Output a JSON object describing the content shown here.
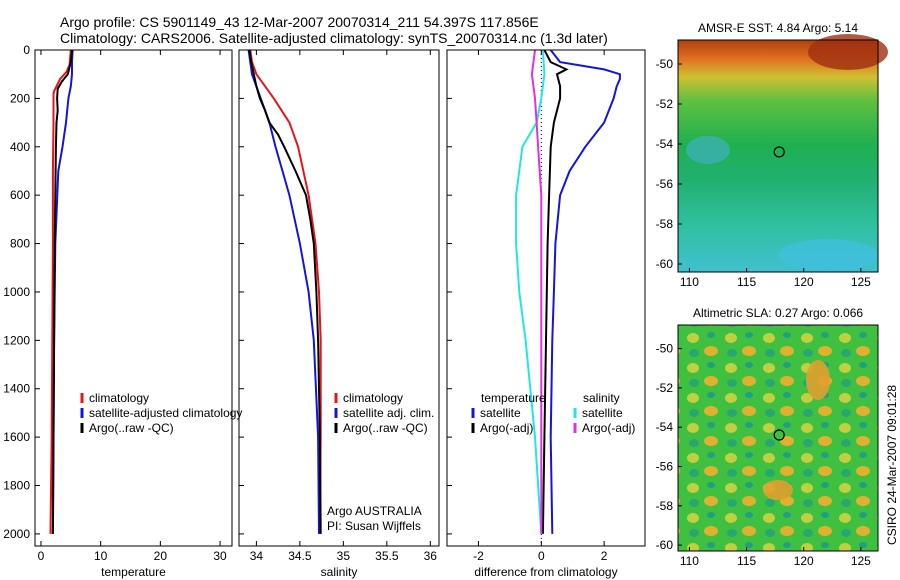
{
  "header": {
    "line1": "Argo profile: CS 5901149_43 12-Mar-2007 20070314_211 54.397S 117.856E",
    "line2": "Climatology: CARS2006. Satellite-adjusted climatology: synTS_20070314.nc (1.3d later)"
  },
  "credit": "CSIRO 24-Mar-2007 09:01:28",
  "colors": {
    "red": "#e8141a",
    "blue": "#1414e0",
    "black": "#000000",
    "cyan": "#20e6e6",
    "magenta": "#e030e0"
  },
  "chart_data": [
    {
      "id": "temperature",
      "type": "line",
      "xlabel": "temperature",
      "ylabel": "depth",
      "xlim": [
        -1,
        32
      ],
      "ylim": [
        0,
        2050
      ],
      "xticks": [
        0,
        10,
        20,
        30
      ],
      "xtick_labels": [
        "0",
        "10",
        "20",
        "30"
      ],
      "yticks": [
        0,
        200,
        400,
        600,
        800,
        1000,
        1200,
        1400,
        1600,
        1800,
        2000
      ],
      "ytick_labels": [
        "0",
        "200",
        "400",
        "600",
        "800",
        "1000",
        "1200",
        "1400",
        "1600",
        "1800",
        "2000"
      ],
      "legend": [
        "climatology",
        "satellite-adjusted climatology",
        "Argo(..raw -QC)"
      ],
      "legend_position": "lower-right",
      "series": [
        {
          "name": "climatology",
          "color": "red",
          "depth": [
            0,
            30,
            60,
            90,
            120,
            150,
            170,
            180,
            200,
            300,
            500,
            800,
            1200,
            1600,
            2000
          ],
          "values": [
            5.0,
            4.9,
            4.8,
            4.3,
            3.2,
            2.6,
            2.2,
            2.1,
            2.1,
            2.1,
            2.0,
            2.0,
            1.9,
            1.8,
            1.6
          ]
        },
        {
          "name": "satellite-adjusted climatology",
          "color": "blue",
          "depth": [
            0,
            50,
            100,
            150,
            200,
            300,
            400,
            500,
            800,
            1200,
            1600,
            2000
          ],
          "values": [
            5.3,
            5.2,
            5.2,
            5.0,
            4.6,
            4.2,
            3.6,
            2.9,
            2.4,
            2.2,
            2.1,
            2.0
          ]
        },
        {
          "name": "Argo(..raw -QC)",
          "color": "black",
          "depth": [
            0,
            50,
            100,
            130,
            160,
            200,
            250,
            300,
            400,
            600,
            800,
            1200,
            1600,
            2000
          ],
          "values": [
            5.2,
            5.0,
            4.5,
            3.5,
            2.8,
            2.7,
            2.8,
            2.6,
            2.5,
            2.4,
            2.3,
            2.2,
            2.1,
            2.0
          ]
        }
      ]
    },
    {
      "id": "salinity",
      "type": "line",
      "xlabel": "salinity",
      "ylabel": "depth",
      "xlim": [
        33.8,
        36.1
      ],
      "ylim": [
        0,
        2050
      ],
      "xticks": [
        34,
        34.5,
        35,
        35.5,
        36
      ],
      "xtick_labels": [
        "34",
        "34.5",
        "35",
        "35.5",
        "36"
      ],
      "legend": [
        "climatology",
        "satellite adj. clim.",
        "Argo(..raw -QC)"
      ],
      "legend_position": "lower-right",
      "annotations": [
        "Argo AUSTRALIA",
        "PI: Susan Wijffels"
      ],
      "series": [
        {
          "name": "climatology",
          "color": "red",
          "depth": [
            0,
            50,
            100,
            200,
            300,
            400,
            600,
            800,
            1000,
            1200,
            1600,
            2000
          ],
          "values": [
            33.93,
            33.95,
            34.0,
            34.2,
            34.38,
            34.48,
            34.6,
            34.68,
            34.72,
            34.74,
            34.74,
            34.73
          ]
        },
        {
          "name": "satellite adj. clim.",
          "color": "blue",
          "depth": [
            0,
            50,
            100,
            200,
            300,
            400,
            500,
            600,
            800,
            1000,
            1200,
            1600,
            2000
          ],
          "values": [
            33.91,
            33.93,
            33.95,
            34.05,
            34.15,
            34.22,
            34.3,
            34.38,
            34.5,
            34.6,
            34.66,
            34.71,
            34.72
          ]
        },
        {
          "name": "Argo(..raw -QC)",
          "color": "black",
          "depth": [
            0,
            50,
            100,
            150,
            200,
            250,
            300,
            350,
            400,
            500,
            600,
            700,
            800,
            1000,
            1200,
            1600,
            2000
          ],
          "values": [
            33.92,
            33.94,
            33.97,
            34.0,
            34.04,
            34.1,
            34.15,
            34.25,
            34.32,
            34.45,
            34.57,
            34.62,
            34.66,
            34.69,
            34.71,
            34.73,
            34.74
          ]
        }
      ]
    },
    {
      "id": "difference",
      "type": "line",
      "xlabel": "difference from climatology",
      "ylabel": "depth",
      "xlim": [
        -3,
        3.3
      ],
      "ylim": [
        0,
        2050
      ],
      "xticks": [
        -2,
        0,
        2
      ],
      "xtick_labels": [
        "-2",
        "0",
        "2"
      ],
      "legend_groups": [
        {
          "title": "temperature",
          "items": [
            "satellite",
            "Argo(-adj)"
          ]
        },
        {
          "title": "salinity",
          "items": [
            "satellite",
            "Argo(-adj)"
          ]
        }
      ],
      "legend_position": "lower-center",
      "series": [
        {
          "name": "temperature satellite",
          "color": "blue",
          "depth": [
            0,
            50,
            80,
            100,
            120,
            150,
            200,
            300,
            400,
            500,
            600,
            800,
            1000,
            1200,
            1600,
            2000
          ],
          "values": [
            0.3,
            0.6,
            2.0,
            2.5,
            2.5,
            2.4,
            2.3,
            2.0,
            1.4,
            0.9,
            0.6,
            0.45,
            0.4,
            0.35,
            0.3,
            0.35
          ]
        },
        {
          "name": "temperature Argo(-adj)",
          "color": "black",
          "depth": [
            0,
            50,
            80,
            100,
            150,
            200,
            250,
            300,
            400,
            600,
            800,
            1200,
            1600,
            2000
          ],
          "values": [
            0.1,
            0.3,
            0.8,
            0.5,
            0.6,
            0.6,
            0.5,
            0.4,
            0.3,
            0.25,
            0.2,
            0.15,
            0.1,
            0.05
          ]
        },
        {
          "name": "salinity satellite",
          "color": "cyan",
          "depth": [
            0,
            100,
            200,
            300,
            400,
            600,
            800,
            1000,
            1200,
            1600,
            2000
          ],
          "values": [
            0.05,
            0.1,
            0.0,
            -0.15,
            -0.6,
            -0.8,
            -0.8,
            -0.7,
            -0.5,
            -0.2,
            0.0
          ]
        },
        {
          "name": "salinity Argo(-adj)",
          "color": "magenta",
          "depth": [
            0,
            100,
            200,
            300,
            400,
            600,
            800,
            1000,
            1200,
            1600,
            2000
          ],
          "values": [
            -0.2,
            -0.3,
            -0.2,
            -0.15,
            -0.1,
            0.0,
            0.0,
            0.0,
            0.0,
            0.0,
            0.0
          ]
        }
      ]
    },
    {
      "id": "sst_map",
      "type": "heatmap",
      "title": "AMSR-E SST: 4.84  Argo: 5.14",
      "xlim": [
        109,
        126.5
      ],
      "ylim": [
        -60.4,
        -48.8
      ],
      "xticks": [
        110,
        115,
        120,
        125
      ],
      "xtick_labels": [
        "110",
        "115",
        "120",
        "125"
      ],
      "yticks": [
        -50,
        -52,
        -54,
        -56,
        -58,
        -60
      ],
      "ytick_labels": [
        "-50",
        "-52",
        "-54",
        "-56",
        "-58",
        "-60"
      ],
      "argo_position": {
        "lon": 117.856,
        "lat": -54.397
      }
    },
    {
      "id": "sla_map",
      "type": "heatmap",
      "title": "Altimetric SLA: 0.27  Argo: 0.066",
      "xlim": [
        109,
        126.5
      ],
      "ylim": [
        -60.3,
        -48.8
      ],
      "xticks": [
        110,
        115,
        120,
        125
      ],
      "xtick_labels": [
        "110",
        "115",
        "120",
        "125"
      ],
      "yticks": [
        -50,
        -52,
        -54,
        -56,
        -58,
        -60
      ],
      "ytick_labels": [
        "-50",
        "-52",
        "-54",
        "-56",
        "-58",
        "-60"
      ],
      "argo_position": {
        "lon": 117.856,
        "lat": -54.397
      }
    }
  ]
}
